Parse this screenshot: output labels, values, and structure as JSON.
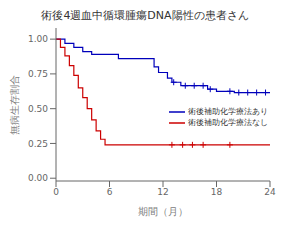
{
  "chart_data": {
    "type": "line",
    "title": "術後4週血中循環腫瘍DNA陽性の患者さん",
    "xlabel": "期間（月）",
    "ylabel": "無病生存割合",
    "xlim": [
      0,
      24
    ],
    "ylim": [
      -0.02,
      1.08
    ],
    "xticks": [
      0,
      6,
      12,
      18,
      24
    ],
    "yticks": [
      {
        "value": 0.0,
        "label": "0.00"
      },
      {
        "value": 0.25,
        "label": "0.25"
      },
      {
        "value": 0.5,
        "label": "0.50"
      },
      {
        "value": 0.75,
        "label": "0.75"
      },
      {
        "value": 1.0,
        "label": "1.00"
      }
    ],
    "grid": false,
    "legend": "lower right",
    "series": [
      {
        "name": "術後補助化学療法あり",
        "color": "#0000bb",
        "x": [
          0,
          1.0,
          1.0,
          2.0,
          2.0,
          3.0,
          3.0,
          4.0,
          4.0,
          5.0,
          6.0,
          7.0,
          7.0,
          8.0,
          9.0,
          10.0,
          11.0,
          11.0,
          11.5,
          11.5,
          12.0,
          12.5,
          12.5,
          13.0,
          13.0,
          14.0,
          14.0,
          15.0,
          16.0,
          17.0,
          17.0,
          18.0,
          18.0,
          19.0,
          20.0,
          20.0,
          21.0,
          22.0,
          23.0,
          24.0
        ],
        "values": [
          1.0,
          1.0,
          0.97,
          0.97,
          0.94,
          0.94,
          0.91,
          0.91,
          0.89,
          0.89,
          0.89,
          0.89,
          0.86,
          0.86,
          0.86,
          0.86,
          0.86,
          0.8,
          0.8,
          0.76,
          0.76,
          0.76,
          0.72,
          0.72,
          0.69,
          0.69,
          0.665,
          0.665,
          0.665,
          0.665,
          0.64,
          0.64,
          0.625,
          0.625,
          0.625,
          0.616,
          0.616,
          0.616,
          0.616,
          0.616
        ],
        "censor_x": [
          13.2,
          14.5,
          15.5,
          16.5,
          17.3,
          19.5,
          20.5,
          21.5,
          22.5,
          23.5
        ],
        "censor_y": [
          0.69,
          0.665,
          0.665,
          0.665,
          0.64,
          0.625,
          0.616,
          0.616,
          0.616,
          0.616
        ]
      },
      {
        "name": "術後補助化学療法なし",
        "color": "#cc0000",
        "x": [
          0,
          0.5,
          0.5,
          1.0,
          1.0,
          1.5,
          1.5,
          2.0,
          2.0,
          2.5,
          2.5,
          3.0,
          3.0,
          3.5,
          3.5,
          4.0,
          4.0,
          4.5,
          4.5,
          5.0,
          5.0,
          5.5,
          5.5,
          6.0,
          24.0
        ],
        "values": [
          1.0,
          1.0,
          0.94,
          0.94,
          0.88,
          0.88,
          0.81,
          0.81,
          0.74,
          0.74,
          0.65,
          0.65,
          0.58,
          0.58,
          0.5,
          0.5,
          0.42,
          0.42,
          0.34,
          0.34,
          0.28,
          0.28,
          0.24,
          0.24,
          0.24
        ],
        "censor_x": [
          13.0,
          14.2,
          15.3,
          16.5,
          19.5
        ],
        "censor_y": [
          0.24,
          0.24,
          0.24,
          0.24,
          0.24
        ]
      }
    ]
  }
}
